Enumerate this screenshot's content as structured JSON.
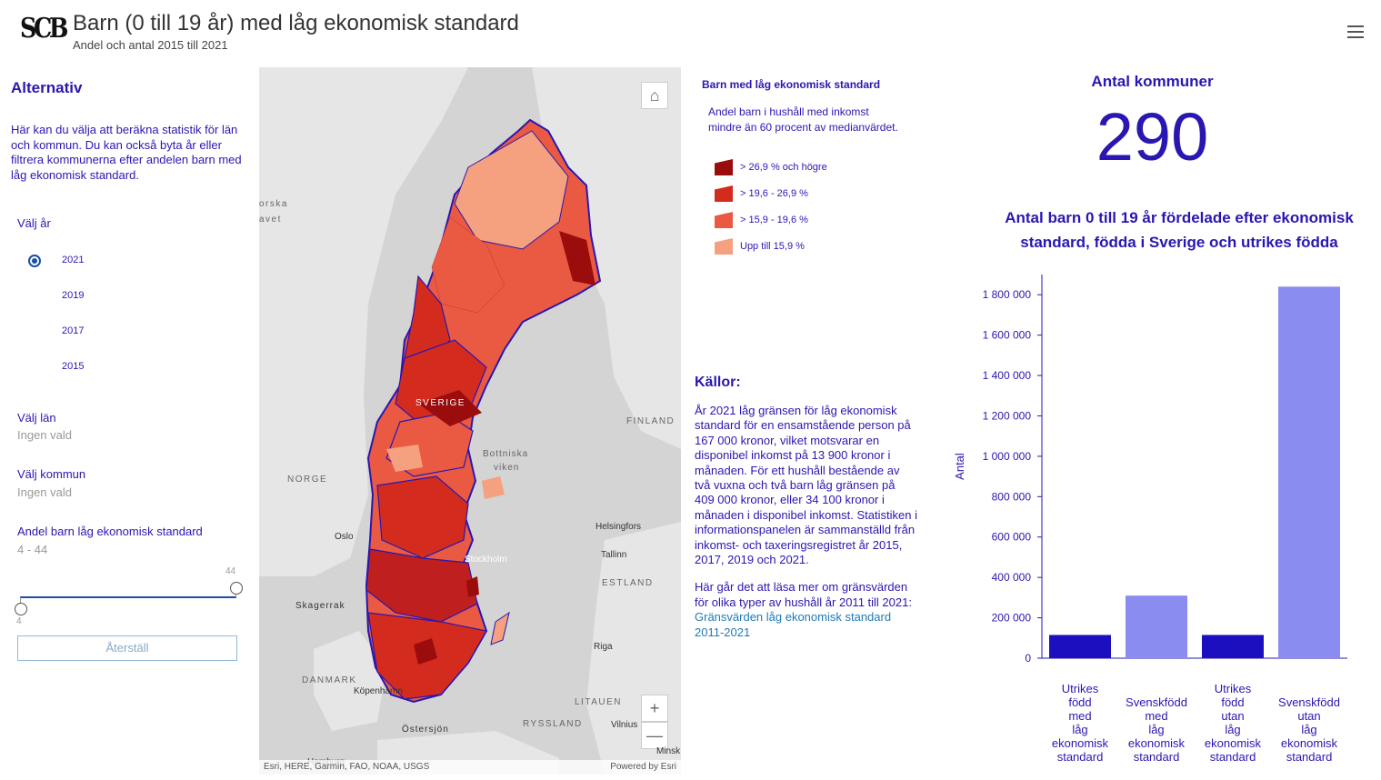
{
  "header": {
    "logo": "SCB",
    "title": "Barn (0 till 19 år) med låg ekonomisk standard",
    "subtitle": "Andel och antal 2015 till 2021",
    "menu_icon": "hamburger-icon"
  },
  "sidebar": {
    "heading": "Alternativ",
    "description": "Här kan du välja att beräkna statistik för län och kommun. Du kan också byta år eller filtrera kommunerna efter andelen barn med låg ekonomisk standard.",
    "year_label": "Välj år",
    "years": [
      {
        "label": "2021",
        "selected": true
      },
      {
        "label": "2019",
        "selected": false
      },
      {
        "label": "2017",
        "selected": false
      },
      {
        "label": "2015",
        "selected": false
      }
    ],
    "county_label": "Välj län",
    "county_value": "Ingen vald",
    "municipality_label": "Välj kommun",
    "municipality_value": "Ingen vald",
    "share_label": "Andel barn låg ekonomisk standard",
    "share_range_text": "4 - 44",
    "slider_max": "44",
    "slider_min": "4",
    "reset_label": "Återställ"
  },
  "map": {
    "home_icon": "home-icon",
    "zoom_in": "+",
    "zoom_out": "—",
    "labels": {
      "sverige": "SVERIGE",
      "finland": "FINLAND",
      "norge": "NORGE",
      "estland": "ESTLAND",
      "danmark": "DANMARK",
      "litauen": "LITAUEN",
      "ryssland": "RYSSLAND",
      "bottniska": "Bottniska",
      "viken": "viken",
      "oslo": "Oslo",
      "stockholm": "Stockholm",
      "helsingfors": "Helsingfors",
      "tallinn": "Tallinn",
      "riga": "Riga",
      "skagerrak": "Skagerrak",
      "kopenhamn": "Köpenhamn",
      "ostersjon": "Östersjön",
      "vilnius": "Vilnius",
      "minsk": "Minsk",
      "hamburg": "Hamburg",
      "norska1": "orska",
      "norska2": "avet"
    },
    "attribution": "Esri, HERE, Garmin, FAO, NOAA, USGS",
    "powered_by": "Powered by Esri"
  },
  "legend": {
    "title": "Barn med låg ekonomisk standard",
    "description": "Andel barn i hushåll med inkomst mindre än 60 procent av medianvärdet.",
    "items": [
      {
        "label": "> 26,9 % och högre",
        "color": "#9b0c0c"
      },
      {
        "label": "> 19,6 - 26,9 %",
        "color": "#d42b1f"
      },
      {
        "label": "> 15,9 - 19,6 %",
        "color": "#ea5a43"
      },
      {
        "label": "Upp till 15,9 %",
        "color": "#f5a07e"
      }
    ]
  },
  "sources": {
    "heading": "Källor:",
    "paragraph1": "År 2021 låg gränsen för låg ekonomisk standard för en ensamstående person på 167 000 kronor, vilket motsvarar en disponibel inkomst på 13 900 kronor i månaden. För ett hushåll bestående av två vuxna och två barn låg gränsen på 409 000 kronor, eller 34 100 kronor i månaden i disponibel inkomst. Statistiken i informationspanelen är sammanställd från inkomst- och taxeringsregistret år 2015, 2017, 2019 och 2021.",
    "paragraph2": "Här går det att läsa mer om gränsvärden för olika typer av hushåll år 2011 till 2021:",
    "link": "Gränsvärden låg ekonomisk standard 2011-2021"
  },
  "kpi": {
    "title": "Antal kommuner",
    "value": "290"
  },
  "chart_title": "Antal barn 0 till 19 år fördelade efter ekonomisk standard, födda i Sverige och utrikes födda",
  "chart_data": {
    "type": "bar",
    "title": "Antal barn 0 till 19 år fördelade efter ekonomisk standard, födda i Sverige och utrikes födda",
    "ylabel": "Antal",
    "xlabel": "",
    "ylim": [
      0,
      1900000
    ],
    "yticks": [
      0,
      200000,
      400000,
      600000,
      800000,
      1000000,
      1200000,
      1400000,
      1600000,
      1800000
    ],
    "ytick_labels": [
      "0",
      "200 000",
      "400 000",
      "600 000",
      "800 000",
      "1 000 000",
      "1 200 000",
      "1 400 000",
      "1 600 000",
      "1 800 000"
    ],
    "categories": [
      "Utrikes född med låg ekonomisk standard",
      "Svenskfödd med låg ekonomisk standard",
      "Utrikes född utan låg ekonomisk standard",
      "Svenskfödd utan låg ekonomisk standard"
    ],
    "category_lines": [
      [
        "Utrikes",
        "född",
        "med",
        "låg",
        "ekonomisk",
        "standard"
      ],
      [
        "Svenskfödd",
        "med",
        "låg",
        "ekonomisk",
        "standard"
      ],
      [
        "Utrikes",
        "född",
        "utan",
        "låg",
        "ekonomisk",
        "standard"
      ],
      [
        "Svenskfödd",
        "utan",
        "låg",
        "ekonomisk",
        "standard"
      ]
    ],
    "values": [
      115000,
      310000,
      115000,
      1840000
    ],
    "colors": [
      "#1c0fc0",
      "#8b8cf0",
      "#1c0fc0",
      "#8b8cf0"
    ],
    "grid": false
  }
}
